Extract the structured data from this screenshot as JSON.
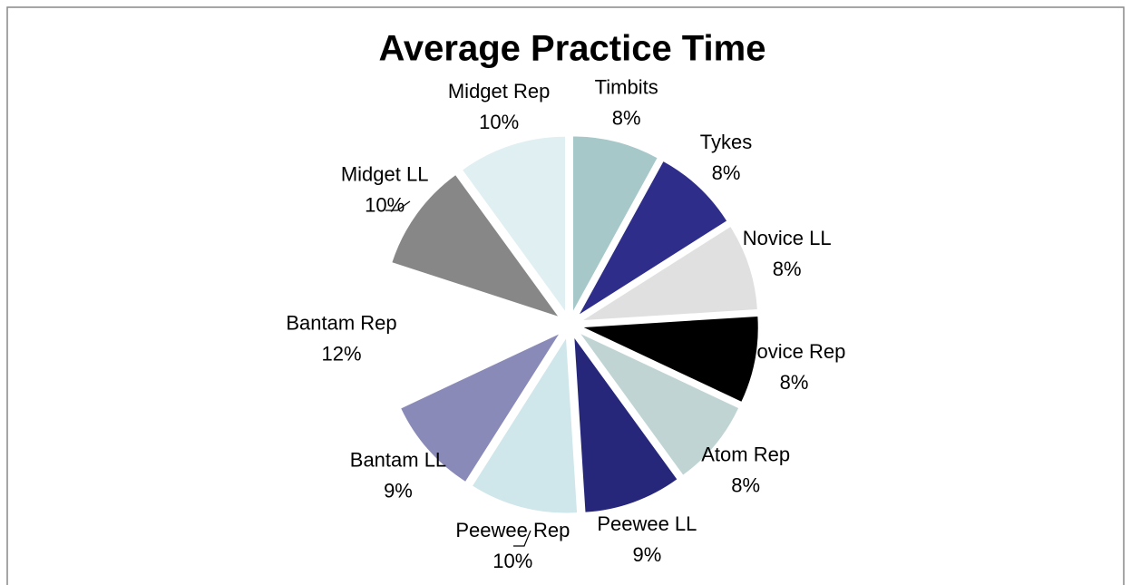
{
  "chart_data": {
    "type": "pie",
    "title": "Average Practice Time",
    "categories": [
      "Timbits",
      "Tykes",
      "Novice LL",
      "Novice Rep",
      "Atom Rep",
      "Peewee LL",
      "Peewee Rep",
      "Bantam LL",
      "Bantam Rep",
      "Midget LL",
      "Midget Rep"
    ],
    "values": [
      8,
      8,
      8,
      8,
      8,
      9,
      10,
      9,
      12,
      10,
      10
    ],
    "value_labels": [
      "8%",
      "8%",
      "8%",
      "8%",
      "8%",
      "9%",
      "10%",
      "9%",
      "12%",
      "10%",
      "10%"
    ],
    "colors": [
      "#a6c8c8",
      "#2e2e8a",
      "#e0e0e0",
      "#000000",
      "#c0d4d4",
      "#26267a",
      "#cfe6ea",
      "#8a8ab8",
      "#ffffff",
      "#878787",
      "#e0eff2"
    ]
  }
}
